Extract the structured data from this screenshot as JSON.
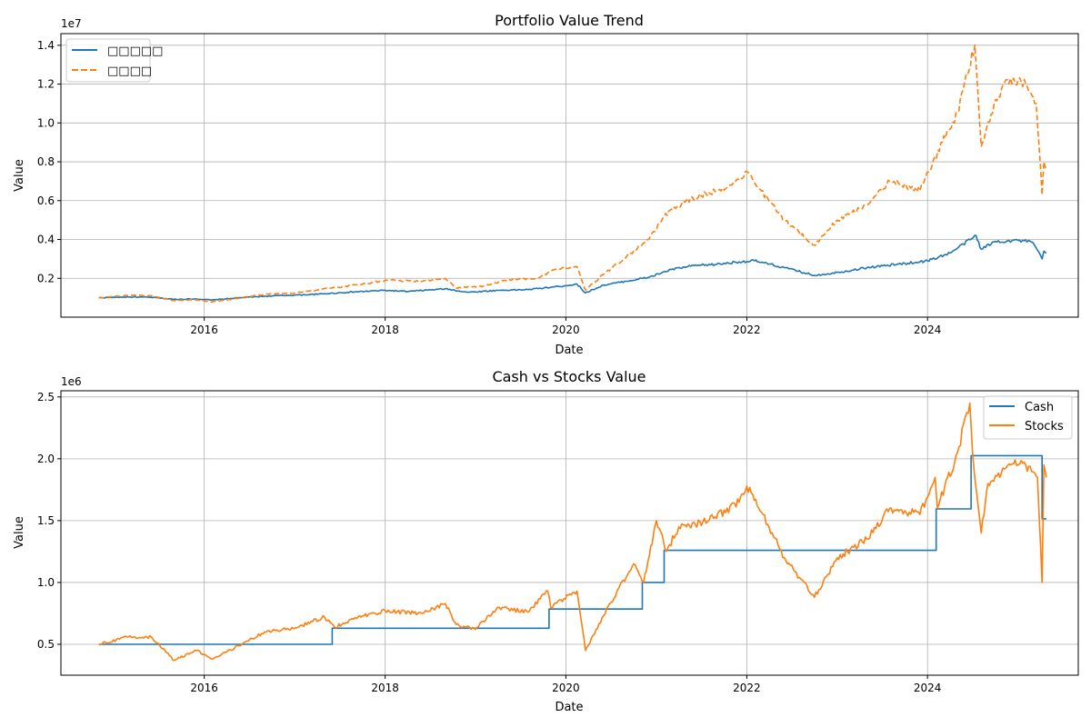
{
  "colors": {
    "blue": "#1f77b4",
    "orange": "#ff7f0e",
    "grid": "#b0b0b0",
    "axes": "#000000"
  },
  "chart_data": [
    {
      "type": "line",
      "title": "Portfolio Value Trend",
      "xlabel": "Date",
      "ylabel": "Value",
      "y_offset_label": "1e7",
      "scale": 10000000,
      "x_range": [
        "2014-06-01",
        "2025-09-01"
      ],
      "ylim": [
        0.0,
        1.46
      ],
      "xticks": [
        "2016",
        "2018",
        "2020",
        "2022",
        "2024"
      ],
      "yticks": [
        {
          "value": 0.2,
          "label": "0.2"
        },
        {
          "value": 0.4,
          "label": "0.4"
        },
        {
          "value": 0.6,
          "label": "0.6"
        },
        {
          "value": 0.8,
          "label": "0.8"
        },
        {
          "value": 1.0,
          "label": "1.0"
        },
        {
          "value": 1.2,
          "label": "1.2"
        },
        {
          "value": 1.4,
          "label": "1.4"
        }
      ],
      "grid": true,
      "legend": {
        "position": "top-left"
      },
      "series": [
        {
          "name": "□□□□□",
          "style": "solid",
          "color": "#1f77b4",
          "points": [
            [
              "2014-11-01",
              0.1
            ],
            [
              "2015-03-01",
              0.104
            ],
            [
              "2015-06-01",
              0.102
            ],
            [
              "2015-09-01",
              0.092
            ],
            [
              "2015-12-01",
              0.094
            ],
            [
              "2016-02-01",
              0.088
            ],
            [
              "2016-05-01",
              0.098
            ],
            [
              "2016-09-01",
              0.108
            ],
            [
              "2016-12-01",
              0.112
            ],
            [
              "2017-04-01",
              0.118
            ],
            [
              "2017-08-01",
              0.128
            ],
            [
              "2018-01-01",
              0.138
            ],
            [
              "2018-04-01",
              0.132
            ],
            [
              "2018-09-01",
              0.146
            ],
            [
              "2018-12-01",
              0.128
            ],
            [
              "2019-04-01",
              0.138
            ],
            [
              "2019-08-01",
              0.142
            ],
            [
              "2019-12-01",
              0.158
            ],
            [
              "2020-02-15",
              0.17
            ],
            [
              "2020-03-20",
              0.125
            ],
            [
              "2020-06-01",
              0.165
            ],
            [
              "2020-09-01",
              0.185
            ],
            [
              "2020-12-01",
              0.205
            ],
            [
              "2021-03-01",
              0.245
            ],
            [
              "2021-06-01",
              0.265
            ],
            [
              "2021-09-01",
              0.272
            ],
            [
              "2021-12-01",
              0.285
            ],
            [
              "2022-02-01",
              0.29
            ],
            [
              "2022-06-01",
              0.255
            ],
            [
              "2022-10-01",
              0.215
            ],
            [
              "2023-01-01",
              0.23
            ],
            [
              "2023-05-01",
              0.255
            ],
            [
              "2023-09-01",
              0.272
            ],
            [
              "2024-01-01",
              0.29
            ],
            [
              "2024-04-01",
              0.33
            ],
            [
              "2024-07-15",
              0.42
            ],
            [
              "2024-08-05",
              0.35
            ],
            [
              "2024-10-01",
              0.39
            ],
            [
              "2025-01-01",
              0.395
            ],
            [
              "2025-03-01",
              0.385
            ],
            [
              "2025-04-08",
              0.3
            ],
            [
              "2025-04-15",
              0.34
            ],
            [
              "2025-04-25",
              0.33
            ]
          ]
        },
        {
          "name": "□□□□",
          "style": "dashed",
          "color": "#ff7f0e",
          "points": [
            [
              "2014-11-01",
              0.1
            ],
            [
              "2015-03-01",
              0.112
            ],
            [
              "2015-06-01",
              0.11
            ],
            [
              "2015-09-01",
              0.085
            ],
            [
              "2015-12-01",
              0.09
            ],
            [
              "2016-02-01",
              0.078
            ],
            [
              "2016-06-01",
              0.1
            ],
            [
              "2016-09-01",
              0.118
            ],
            [
              "2017-01-01",
              0.125
            ],
            [
              "2017-06-01",
              0.15
            ],
            [
              "2017-10-01",
              0.17
            ],
            [
              "2018-01-01",
              0.19
            ],
            [
              "2018-06-01",
              0.185
            ],
            [
              "2018-09-01",
              0.2
            ],
            [
              "2018-10-15",
              0.15
            ],
            [
              "2019-02-01",
              0.16
            ],
            [
              "2019-05-01",
              0.19
            ],
            [
              "2019-09-01",
              0.2
            ],
            [
              "2019-12-01",
              0.25
            ],
            [
              "2020-02-15",
              0.26
            ],
            [
              "2020-03-20",
              0.14
            ],
            [
              "2020-06-01",
              0.22
            ],
            [
              "2020-09-01",
              0.31
            ],
            [
              "2020-12-01",
              0.4
            ],
            [
              "2021-02-01",
              0.52
            ],
            [
              "2021-05-01",
              0.6
            ],
            [
              "2021-08-01",
              0.64
            ],
            [
              "2021-11-01",
              0.68
            ],
            [
              "2022-01-01",
              0.75
            ],
            [
              "2022-03-01",
              0.65
            ],
            [
              "2022-06-01",
              0.5
            ],
            [
              "2022-10-01",
              0.37
            ],
            [
              "2023-01-01",
              0.5
            ],
            [
              "2023-05-01",
              0.58
            ],
            [
              "2023-08-01",
              0.7
            ],
            [
              "2023-12-01",
              0.65
            ],
            [
              "2024-03-01",
              0.9
            ],
            [
              "2024-05-01",
              1.05
            ],
            [
              "2024-07-10",
              1.4
            ],
            [
              "2024-08-05",
              0.88
            ],
            [
              "2024-10-01",
              1.12
            ],
            [
              "2024-12-01",
              1.23
            ],
            [
              "2025-02-01",
              1.2
            ],
            [
              "2025-03-15",
              1.1
            ],
            [
              "2025-04-08",
              0.63
            ],
            [
              "2025-04-15",
              0.8
            ],
            [
              "2025-04-25",
              0.76
            ]
          ]
        }
      ]
    },
    {
      "type": "line",
      "title": "Cash vs Stocks Value",
      "xlabel": "Date",
      "ylabel": "Value",
      "y_offset_label": "1e6",
      "scale": 1000000,
      "x_range": [
        "2014-06-01",
        "2025-09-01"
      ],
      "ylim": [
        0.25,
        2.55
      ],
      "xticks": [
        "2016",
        "2018",
        "2020",
        "2022",
        "2024"
      ],
      "yticks": [
        {
          "value": 0.5,
          "label": "0.5"
        },
        {
          "value": 1.0,
          "label": "1.0"
        },
        {
          "value": 1.5,
          "label": "1.5"
        },
        {
          "value": 2.0,
          "label": "2.0"
        },
        {
          "value": 2.5,
          "label": "2.5"
        }
      ],
      "grid": true,
      "legend": {
        "position": "top-right"
      },
      "series": [
        {
          "name": "Cash",
          "style": "solid",
          "step": true,
          "color": "#1f77b4",
          "points": [
            [
              "2014-11-01",
              0.5
            ],
            [
              "2017-06-01",
              0.63
            ],
            [
              "2019-10-25",
              0.785
            ],
            [
              "2020-11-05",
              1.0
            ],
            [
              "2021-02-01",
              1.26
            ],
            [
              "2024-02-05",
              1.595
            ],
            [
              "2024-06-25",
              2.025
            ],
            [
              "2025-04-08",
              1.515
            ],
            [
              "2025-04-25",
              1.515
            ]
          ]
        },
        {
          "name": "Stocks",
          "style": "solid",
          "color": "#ff7f0e",
          "points": [
            [
              "2014-11-01",
              0.5
            ],
            [
              "2015-03-01",
              0.56
            ],
            [
              "2015-06-01",
              0.56
            ],
            [
              "2015-09-01",
              0.37
            ],
            [
              "2015-12-01",
              0.45
            ],
            [
              "2016-02-01",
              0.38
            ],
            [
              "2016-06-01",
              0.5
            ],
            [
              "2016-09-01",
              0.6
            ],
            [
              "2017-01-01",
              0.63
            ],
            [
              "2017-05-01",
              0.72
            ],
            [
              "2017-06-10",
              0.64
            ],
            [
              "2017-10-01",
              0.73
            ],
            [
              "2018-01-01",
              0.77
            ],
            [
              "2018-06-01",
              0.75
            ],
            [
              "2018-09-01",
              0.83
            ],
            [
              "2018-10-15",
              0.66
            ],
            [
              "2019-01-01",
              0.62
            ],
            [
              "2019-04-01",
              0.8
            ],
            [
              "2019-08-01",
              0.76
            ],
            [
              "2019-10-20",
              0.93
            ],
            [
              "2019-11-01",
              0.8
            ],
            [
              "2020-02-15",
              0.93
            ],
            [
              "2020-03-20",
              0.45
            ],
            [
              "2020-06-01",
              0.73
            ],
            [
              "2020-08-01",
              0.95
            ],
            [
              "2020-10-01",
              1.15
            ],
            [
              "2020-11-10",
              1.0
            ],
            [
              "2021-01-01",
              1.5
            ],
            [
              "2021-02-10",
              1.25
            ],
            [
              "2021-04-01",
              1.45
            ],
            [
              "2021-08-01",
              1.5
            ],
            [
              "2021-12-01",
              1.65
            ],
            [
              "2022-01-01",
              1.78
            ],
            [
              "2022-04-01",
              1.45
            ],
            [
              "2022-06-01",
              1.2
            ],
            [
              "2022-10-01",
              0.88
            ],
            [
              "2023-01-01",
              1.2
            ],
            [
              "2023-05-01",
              1.35
            ],
            [
              "2023-08-01",
              1.6
            ],
            [
              "2023-12-01",
              1.55
            ],
            [
              "2024-02-01",
              1.85
            ],
            [
              "2024-02-10",
              1.6
            ],
            [
              "2024-05-01",
              2.05
            ],
            [
              "2024-06-20",
              2.45
            ],
            [
              "2024-07-01",
              2.05
            ],
            [
              "2024-08-05",
              1.4
            ],
            [
              "2024-09-01",
              1.8
            ],
            [
              "2024-12-01",
              1.95
            ],
            [
              "2025-02-01",
              1.95
            ],
            [
              "2025-03-20",
              1.85
            ],
            [
              "2025-04-08",
              1.0
            ],
            [
              "2025-04-15",
              1.95
            ],
            [
              "2025-04-25",
              1.85
            ]
          ]
        }
      ]
    }
  ]
}
